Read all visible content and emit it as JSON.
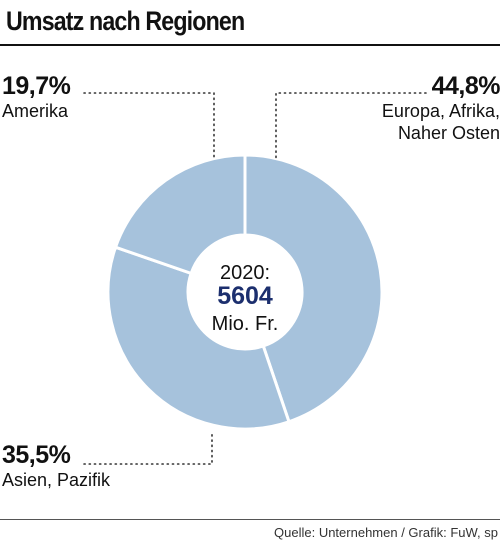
{
  "title": "Umsatz nach Regionen",
  "source": "Quelle: Unternehmen / Grafik: FuW, sp",
  "colors": {
    "slice": "#a6c2dc",
    "slice_border": "#ffffff",
    "center_value": "#1c2f6e",
    "text": "#111111",
    "leader": "#333333"
  },
  "center": {
    "year_label": "2020:",
    "total": "5604",
    "unit": "Mio. Fr."
  },
  "chart_data": {
    "type": "pie",
    "title": "Umsatz nach Regionen",
    "total": 5604,
    "unit": "Mio. Fr.",
    "slices": [
      {
        "label": "Europa, Afrika, Naher Osten",
        "lines": [
          "Europa, Afrika,",
          "Naher Osten"
        ],
        "value": 44.8,
        "value_label": "44,8%"
      },
      {
        "label": "Asien, Pazifik",
        "lines": [
          "Asien, Pazifik"
        ],
        "value": 35.5,
        "value_label": "35,5%"
      },
      {
        "label": "Amerika",
        "lines": [
          "Amerika"
        ],
        "value": 19.7,
        "value_label": "19,7%"
      }
    ]
  }
}
